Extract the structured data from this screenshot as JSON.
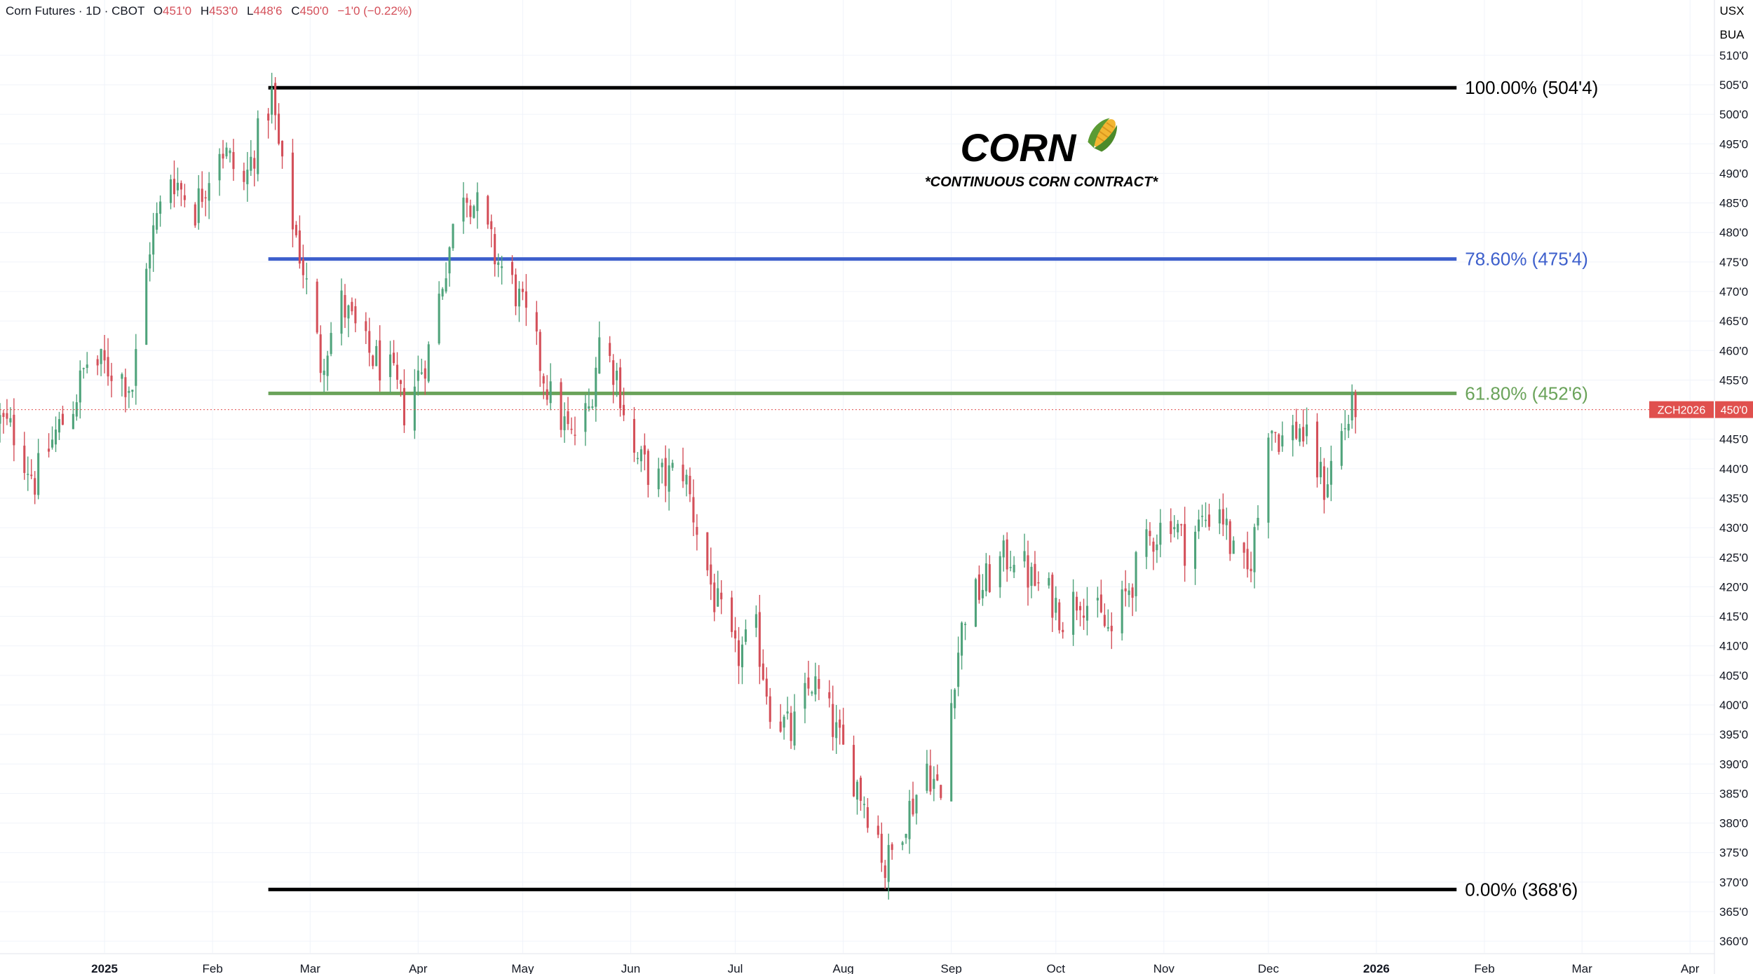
{
  "header": {
    "symbol": "Corn Futures · 1D · CBOT",
    "open_label": "O",
    "open": "451'0",
    "high_label": "H",
    "high": "453'0",
    "low_label": "L",
    "low": "448'6",
    "close_label": "C",
    "close": "450'0",
    "change": "−1'0 (−0.22%)"
  },
  "currency_labels": [
    "USX",
    "BUA"
  ],
  "annotation": {
    "title": "CORN",
    "title_icon": "corn-icon",
    "subtitle": "*CONTINUOUS CORN CONTRACT*"
  },
  "price_tag": {
    "symbol": "ZCH2026",
    "value": "450'0",
    "price": 450.0,
    "color": "#e0504e"
  },
  "colors": {
    "up": "#4fa37b",
    "down": "#d4505a",
    "fib_100": "#000000",
    "fib_786": "#3d5fcc",
    "fib_618": "#6aa35a",
    "fib_0": "#000000"
  },
  "chart_data": {
    "type": "candlestick",
    "title": "",
    "xlabel": "",
    "ylabel": "",
    "y_axis_position": "right",
    "ylim": [
      358,
      512
    ],
    "grid": true,
    "y_ticks": [
      {
        "value": 510,
        "label": "510'0"
      },
      {
        "value": 505,
        "label": "505'0"
      },
      {
        "value": 500,
        "label": "500'0"
      },
      {
        "value": 495,
        "label": "495'0"
      },
      {
        "value": 490,
        "label": "490'0"
      },
      {
        "value": 485,
        "label": "485'0"
      },
      {
        "value": 480,
        "label": "480'0"
      },
      {
        "value": 475,
        "label": "475'0"
      },
      {
        "value": 470,
        "label": "470'0"
      },
      {
        "value": 465,
        "label": "465'0"
      },
      {
        "value": 460,
        "label": "460'0"
      },
      {
        "value": 455,
        "label": "455'0"
      },
      {
        "value": 445,
        "label": "445'0"
      },
      {
        "value": 440,
        "label": "440'0"
      },
      {
        "value": 435,
        "label": "435'0"
      },
      {
        "value": 430,
        "label": "430'0"
      },
      {
        "value": 425,
        "label": "425'0"
      },
      {
        "value": 420,
        "label": "420'0"
      },
      {
        "value": 415,
        "label": "415'0"
      },
      {
        "value": 410,
        "label": "410'0"
      },
      {
        "value": 405,
        "label": "405'0"
      },
      {
        "value": 400,
        "label": "400'0"
      },
      {
        "value": 395,
        "label": "395'0"
      },
      {
        "value": 390,
        "label": "390'0"
      },
      {
        "value": 385,
        "label": "385'0"
      },
      {
        "value": 380,
        "label": "380'0"
      },
      {
        "value": 375,
        "label": "375'0"
      },
      {
        "value": 370,
        "label": "370'0"
      },
      {
        "value": 365,
        "label": "365'0"
      },
      {
        "value": 360,
        "label": "360'0"
      }
    ],
    "x_ticks": [
      {
        "label": "2025",
        "date": "2025-01-01",
        "bold": true
      },
      {
        "label": "Feb",
        "date": "2025-02-01"
      },
      {
        "label": "Mar",
        "date": "2025-03-01"
      },
      {
        "label": "Apr",
        "date": "2025-04-01"
      },
      {
        "label": "May",
        "date": "2025-05-01"
      },
      {
        "label": "Jun",
        "date": "2025-06-01"
      },
      {
        "label": "Jul",
        "date": "2025-07-01"
      },
      {
        "label": "Aug",
        "date": "2025-08-01"
      },
      {
        "label": "Sep",
        "date": "2025-09-01"
      },
      {
        "label": "Oct",
        "date": "2025-10-01"
      },
      {
        "label": "Nov",
        "date": "2025-11-01"
      },
      {
        "label": "Dec",
        "date": "2025-12-01"
      },
      {
        "label": "2026",
        "date": "2026-01-01",
        "bold": true
      },
      {
        "label": "Feb",
        "date": "2026-02-01"
      },
      {
        "label": "Mar",
        "date": "2026-03-01"
      },
      {
        "label": "Apr",
        "date": "2026-04-01"
      }
    ],
    "xlim": [
      "2024-12-02",
      "2026-04-08"
    ],
    "fib_levels": [
      {
        "label": "100.00% (504'4)",
        "value": 504.5,
        "color": "#000000",
        "start": "2025-02-17",
        "end": "2026-01-24"
      },
      {
        "label": "78.60% (475'4)",
        "value": 475.5,
        "color": "#3d5fcc",
        "start": "2025-02-17",
        "end": "2026-01-24"
      },
      {
        "label": "61.80% (452'6)",
        "value": 452.75,
        "color": "#6aa35a",
        "start": "2025-02-17",
        "end": "2026-01-24"
      },
      {
        "label": "0.00% (368'6)",
        "value": 368.75,
        "color": "#000000",
        "start": "2025-02-17",
        "end": "2026-01-24"
      }
    ],
    "waypoints": [
      [
        "2024-12-02",
        448
      ],
      [
        "2024-12-06",
        446
      ],
      [
        "2024-12-12",
        438
      ],
      [
        "2024-12-18",
        446
      ],
      [
        "2024-12-23",
        451
      ],
      [
        "2024-12-27",
        458
      ],
      [
        "2025-01-03",
        457
      ],
      [
        "2025-01-09",
        454
      ],
      [
        "2025-01-14",
        478
      ],
      [
        "2025-01-20",
        490
      ],
      [
        "2025-01-27",
        484
      ],
      [
        "2025-02-03",
        495
      ],
      [
        "2025-02-10",
        488
      ],
      [
        "2025-02-14",
        496
      ],
      [
        "2025-02-18",
        503
      ],
      [
        "2025-02-21",
        490
      ],
      [
        "2025-02-27",
        474
      ],
      [
        "2025-03-04",
        458
      ],
      [
        "2025-03-10",
        468
      ],
      [
        "2025-03-17",
        460
      ],
      [
        "2025-03-24",
        456
      ],
      [
        "2025-03-28",
        450
      ],
      [
        "2025-04-04",
        460
      ],
      [
        "2025-04-09",
        475
      ],
      [
        "2025-04-14",
        488
      ],
      [
        "2025-04-18",
        484
      ],
      [
        "2025-04-23",
        476
      ],
      [
        "2025-04-29",
        470
      ],
      [
        "2025-05-05",
        460
      ],
      [
        "2025-05-09",
        452
      ],
      [
        "2025-05-15",
        445
      ],
      [
        "2025-05-20",
        450
      ],
      [
        "2025-05-23",
        462
      ],
      [
        "2025-05-28",
        456
      ],
      [
        "2025-06-02",
        442
      ],
      [
        "2025-06-09",
        438
      ],
      [
        "2025-06-16",
        440
      ],
      [
        "2025-06-20",
        430
      ],
      [
        "2025-06-25",
        418
      ],
      [
        "2025-07-01",
        408
      ],
      [
        "2025-07-07",
        412
      ],
      [
        "2025-07-11",
        400
      ],
      [
        "2025-07-17",
        395
      ],
      [
        "2025-07-23",
        404
      ],
      [
        "2025-07-28",
        398
      ],
      [
        "2025-08-01",
        392
      ],
      [
        "2025-08-07",
        384
      ],
      [
        "2025-08-11",
        378
      ],
      [
        "2025-08-13",
        372
      ],
      [
        "2025-08-18",
        380
      ],
      [
        "2025-08-22",
        385
      ],
      [
        "2025-08-25",
        390
      ],
      [
        "2025-08-29",
        384
      ],
      [
        "2025-09-02",
        406
      ],
      [
        "2025-09-05",
        416
      ],
      [
        "2025-09-10",
        420
      ],
      [
        "2025-09-15",
        424
      ],
      [
        "2025-09-19",
        426
      ],
      [
        "2025-09-24",
        421
      ],
      [
        "2025-09-30",
        418
      ],
      [
        "2025-10-03",
        415
      ],
      [
        "2025-10-08",
        419
      ],
      [
        "2025-10-14",
        414
      ],
      [
        "2025-10-17",
        412
      ],
      [
        "2025-10-22",
        420
      ],
      [
        "2025-10-28",
        428
      ],
      [
        "2025-11-03",
        432
      ],
      [
        "2025-11-07",
        427
      ],
      [
        "2025-11-12",
        431
      ],
      [
        "2025-11-17",
        434
      ],
      [
        "2025-11-21",
        425
      ],
      [
        "2025-11-25",
        422
      ],
      [
        "2025-11-28",
        432
      ],
      [
        "2025-12-01",
        448
      ],
      [
        "2025-12-05",
        445
      ],
      [
        "2025-12-10",
        447
      ],
      [
        "2025-12-15",
        440
      ],
      [
        "2025-12-17",
        437
      ],
      [
        "2025-12-22",
        446
      ],
      [
        "2025-12-26",
        451
      ]
    ]
  }
}
